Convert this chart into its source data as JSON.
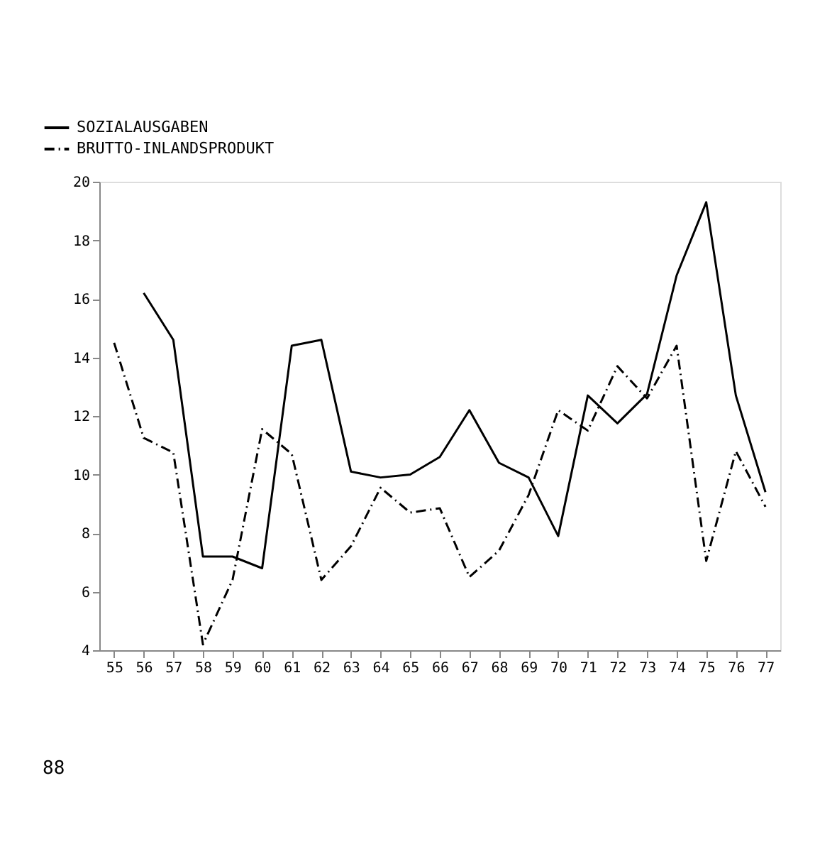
{
  "chart_data": {
    "type": "line",
    "categories": [
      "55",
      "56",
      "57",
      "58",
      "59",
      "60",
      "61",
      "62",
      "63",
      "64",
      "65",
      "66",
      "67",
      "68",
      "69",
      "70",
      "71",
      "72",
      "73",
      "74",
      "75",
      "76",
      "77"
    ],
    "series": [
      {
        "name": "SOZIALAUSGABEN",
        "color": "#000000",
        "line_style": "solid",
        "values": [
          null,
          16.2,
          14.6,
          7.2,
          7.2,
          6.8,
          14.4,
          14.6,
          10.1,
          9.9,
          10.0,
          10.6,
          12.2,
          10.4,
          9.9,
          7.9,
          12.7,
          11.75,
          12.75,
          16.8,
          19.3,
          12.7,
          9.4
        ]
      },
      {
        "name": "BRUTTO-INLANDSPRODUKT",
        "color": "#000000",
        "line_style": "dashdot",
        "values": [
          14.5,
          11.25,
          10.75,
          4.2,
          6.4,
          11.55,
          10.7,
          6.4,
          7.55,
          9.55,
          8.7,
          8.85,
          6.5,
          7.4,
          9.3,
          12.2,
          11.5,
          13.7,
          12.6,
          14.4,
          7.05,
          10.8,
          8.9
        ]
      }
    ],
    "ylim": [
      4,
      20
    ],
    "yticks": [
      4,
      6,
      8,
      10,
      12,
      14,
      16,
      18,
      20
    ],
    "grid": false,
    "legend": "top left",
    "marker": "none",
    "annotations": [
      "88"
    ]
  }
}
